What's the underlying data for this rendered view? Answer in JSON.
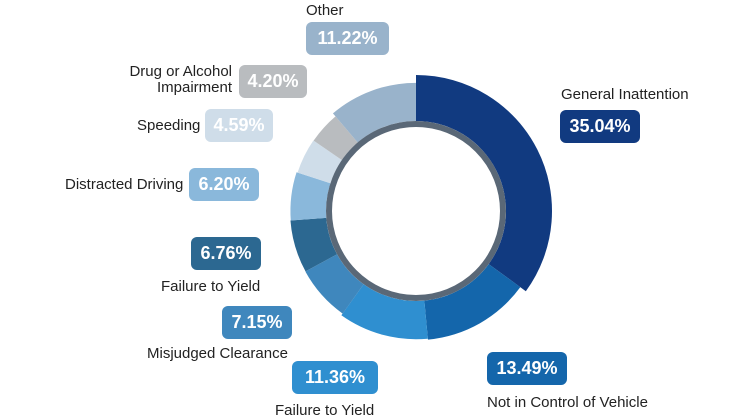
{
  "chart_data": {
    "type": "pie",
    "variant": "donut",
    "title": "",
    "slices": [
      {
        "label": "General Inattention",
        "value": 35.04,
        "display": "35.04%",
        "color": "#113a80"
      },
      {
        "label": "Not in Control of Vehicle",
        "value": 13.49,
        "display": "13.49%",
        "color": "#1466ab"
      },
      {
        "label": "Failure to Yield",
        "value": 11.36,
        "display": "11.36%",
        "color": "#2f8fd0"
      },
      {
        "label": "Misjudged Clearance",
        "value": 7.15,
        "display": "7.15%",
        "color": "#3f87bd"
      },
      {
        "label": "Failure to Yield",
        "value": 6.76,
        "display": "6.76%",
        "color": "#2c6891"
      },
      {
        "label": "Distracted Driving",
        "value": 6.2,
        "display": "6.20%",
        "color": "#8ab8db"
      },
      {
        "label": "Speeding",
        "value": 4.59,
        "display": "4.59%",
        "color": "#cfdde9"
      },
      {
        "label": "Drug or Alcohol Impairment",
        "value": 4.2,
        "display": "4.20%",
        "color": "#b9bcbf"
      },
      {
        "label": "Other",
        "value": 11.22,
        "display": "11.22%",
        "color": "#99b3cb"
      }
    ]
  }
}
